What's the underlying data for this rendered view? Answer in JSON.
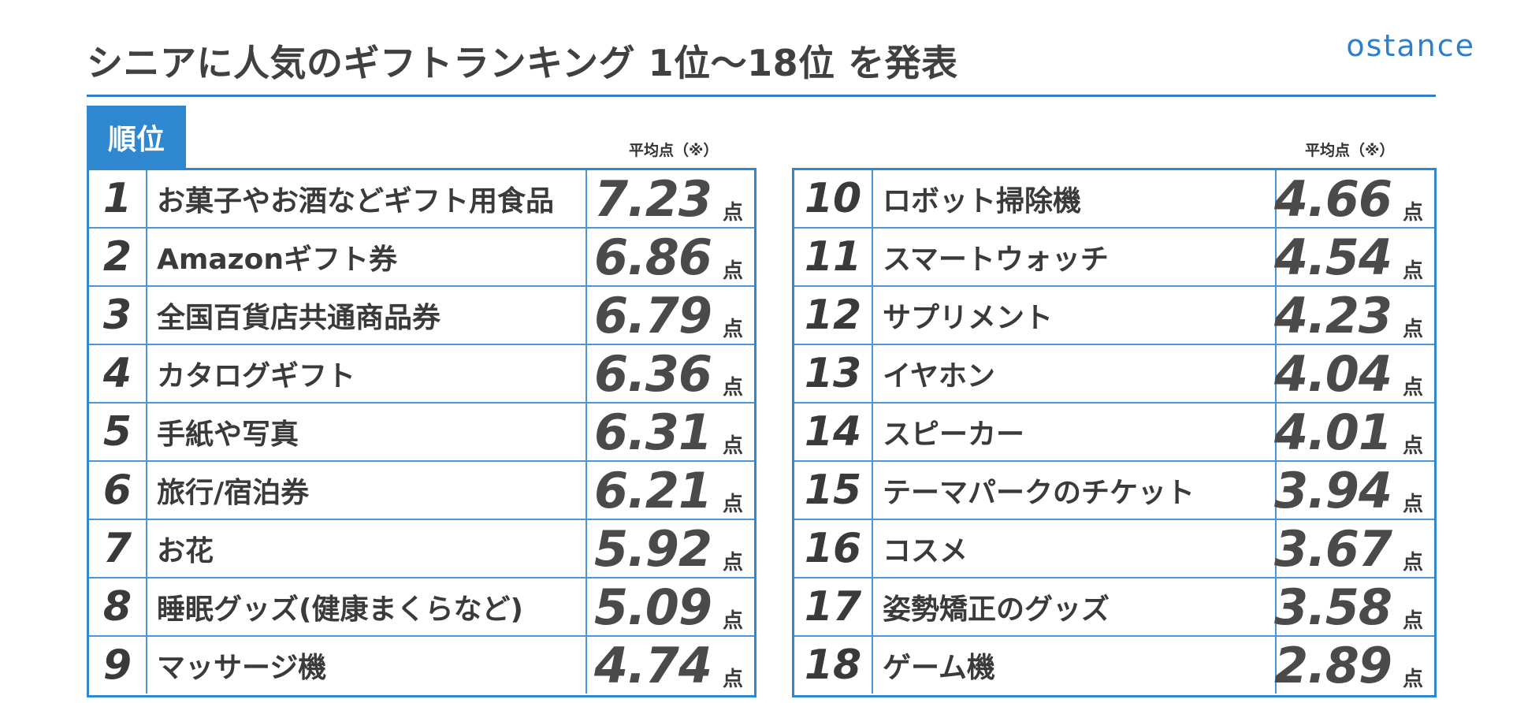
{
  "header": {
    "title": "シニアに人気のギフトランキング 1位〜18位 を発表",
    "logo_text": "ostance"
  },
  "table": {
    "rank_header": "順位",
    "avg_label": "平均点（※）",
    "unit": "点",
    "left_rows": [
      {
        "rank": "1",
        "name": "お菓子やお酒などギフト用食品",
        "score": "7.23"
      },
      {
        "rank": "2",
        "name": "Amazonギフト券",
        "score": "6.86"
      },
      {
        "rank": "3",
        "name": "全国百貨店共通商品券",
        "score": "6.79"
      },
      {
        "rank": "4",
        "name": "カタログギフト",
        "score": "6.36"
      },
      {
        "rank": "5",
        "name": "手紙や写真",
        "score": "6.31"
      },
      {
        "rank": "6",
        "name": "旅行/宿泊券",
        "score": "6.21"
      },
      {
        "rank": "7",
        "name": "お花",
        "score": "5.92"
      },
      {
        "rank": "8",
        "name": "睡眠グッズ(健康まくらなど)",
        "score": "5.09"
      },
      {
        "rank": "9",
        "name": "マッサージ機",
        "score": "4.74"
      }
    ],
    "right_rows": [
      {
        "rank": "10",
        "name": "ロボット掃除機",
        "score": "4.66"
      },
      {
        "rank": "11",
        "name": "スマートウォッチ",
        "score": "4.54"
      },
      {
        "rank": "12",
        "name": "サプリメント",
        "score": "4.23"
      },
      {
        "rank": "13",
        "name": "イヤホン",
        "score": "4.04"
      },
      {
        "rank": "14",
        "name": "スピーカー",
        "score": "4.01"
      },
      {
        "rank": "15",
        "name": "テーマパークのチケット",
        "score": "3.94"
      },
      {
        "rank": "16",
        "name": "コスメ",
        "score": "3.67"
      },
      {
        "rank": "17",
        "name": "姿勢矯正のグッズ",
        "score": "3.58"
      },
      {
        "rank": "18",
        "name": "ゲーム機",
        "score": "2.89"
      }
    ]
  },
  "colors": {
    "accent": "#2f87cf",
    "text": "#3a3a3a"
  }
}
